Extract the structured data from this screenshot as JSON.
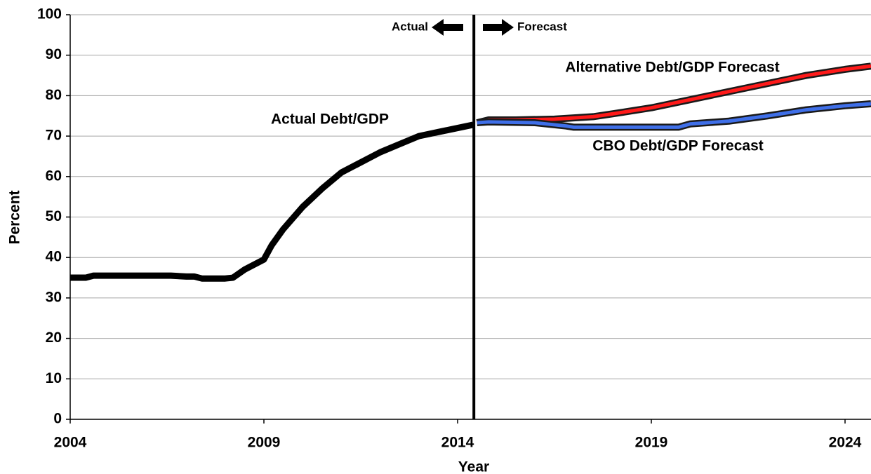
{
  "chart_data": {
    "type": "line",
    "xlabel": "Year",
    "ylabel": "Percent",
    "xlim": [
      2004,
      2024.67
    ],
    "ylim": [
      0,
      100
    ],
    "xticks": [
      2004,
      2009,
      2014,
      2019,
      2024
    ],
    "yticks": [
      0,
      10,
      20,
      30,
      40,
      50,
      60,
      70,
      80,
      90,
      100
    ],
    "grid": true,
    "divider_x": 2014.42,
    "annotations": {
      "actual": "Actual",
      "forecast": "Forecast"
    },
    "series": [
      {
        "name": "Actual Debt/GDP",
        "color": "#000000",
        "x": [
          2004,
          2004.4,
          2004.6,
          2005,
          2006,
          2006.6,
          2007,
          2007.2,
          2007.4,
          2008,
          2008.2,
          2008.5,
          2009,
          2009.2,
          2009.5,
          2010,
          2010.5,
          2011,
          2011.5,
          2012,
          2012.5,
          2013,
          2013.5,
          2014,
          2014.4
        ],
        "values": [
          35,
          35,
          35.5,
          35.5,
          35.5,
          35.5,
          35.3,
          35.3,
          34.8,
          34.8,
          35,
          37,
          39.5,
          43,
          47,
          52.5,
          57,
          61,
          63.5,
          66,
          68,
          70,
          71,
          72,
          72.8
        ]
      },
      {
        "name": "Alternative Debt/GDP Forecast",
        "color": "#ff1a1a",
        "x": [
          2014.5,
          2014.8,
          2015.5,
          2016.5,
          2017.5,
          2018,
          2019,
          2020,
          2021,
          2022,
          2023,
          2024,
          2024.67
        ],
        "values": [
          73.3,
          74,
          74,
          74.2,
          74.8,
          75.5,
          77,
          79,
          81,
          83,
          85,
          86.5,
          87.3
        ]
      },
      {
        "name": "CBO Debt/GDP Forecast",
        "color": "#3f6fe8",
        "x": [
          2014.5,
          2014.8,
          2016,
          2016.8,
          2017,
          2019.7,
          2020,
          2021,
          2022,
          2023,
          2024,
          2024.67
        ],
        "values": [
          73.3,
          73.5,
          73.3,
          72.5,
          72.2,
          72.2,
          73,
          73.7,
          75,
          76.5,
          77.5,
          78
        ]
      }
    ]
  }
}
